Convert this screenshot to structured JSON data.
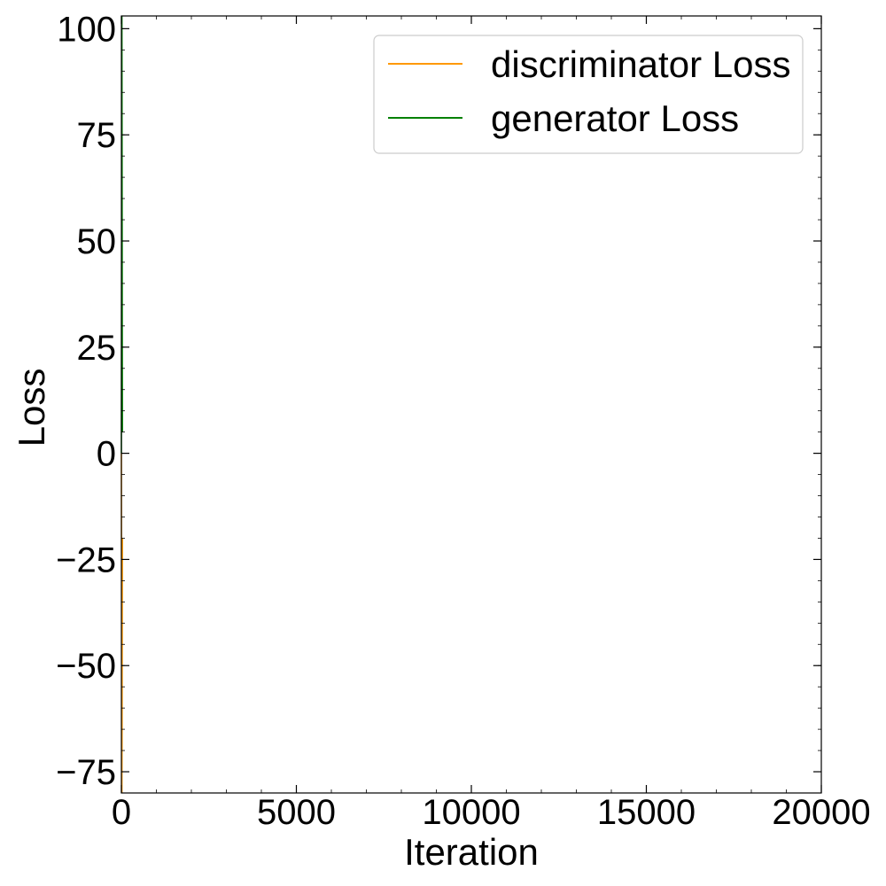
{
  "chart_data": {
    "type": "line",
    "title": "",
    "xlabel": "Iteration",
    "ylabel": "Loss",
    "xlim": [
      0,
      20000
    ],
    "ylim": [
      -80,
      103
    ],
    "xticks": [
      0,
      5000,
      10000,
      15000,
      20000
    ],
    "xtick_labels": [
      "0",
      "5000",
      "10000",
      "15000",
      "20000"
    ],
    "yticks": [
      -75,
      -50,
      -25,
      0,
      25,
      50,
      75,
      100
    ],
    "ytick_labels": [
      "−75",
      "−50",
      "−25",
      "0",
      "25",
      "50",
      "75",
      "100"
    ],
    "grid": false,
    "legend_position": "top-right",
    "series": [
      {
        "name": "discriminator Loss",
        "color": "#ff9900",
        "x": [
          0,
          5,
          10,
          15,
          20,
          25,
          30
        ],
        "y": [
          0,
          -30,
          -55,
          -80,
          -65,
          -40,
          -20
        ]
      },
      {
        "name": "generator Loss",
        "color": "#008000",
        "x": [
          0,
          5,
          10,
          15,
          20,
          25,
          30
        ],
        "y": [
          0,
          40,
          80,
          103,
          70,
          30,
          5
        ]
      }
    ]
  }
}
